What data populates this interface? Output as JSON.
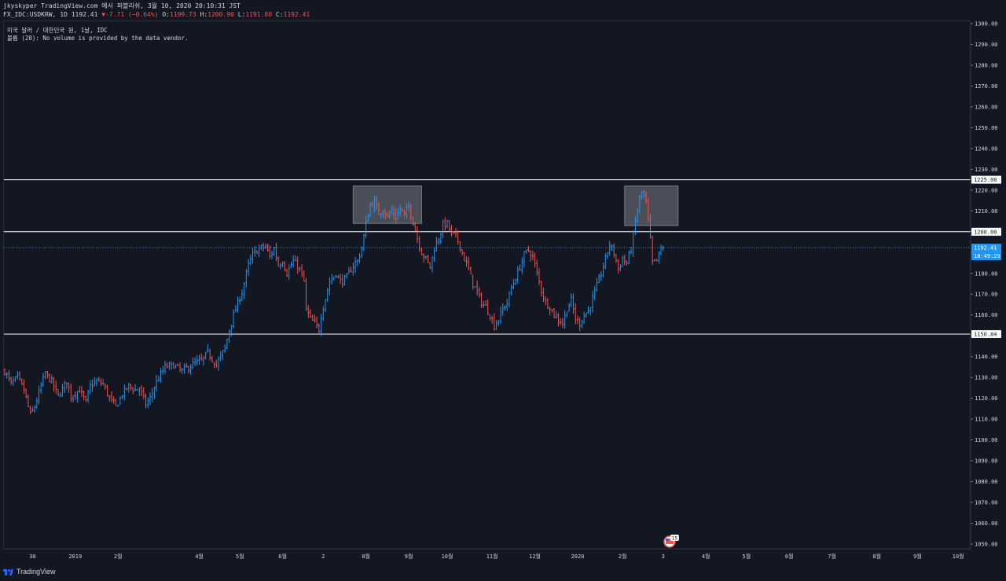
{
  "header": {
    "line1": "jkyskyper TradingView.com 에서 퍼블리쉬, 3월 10, 2020 20:10:31 JST",
    "symbol": "FX_IDC:USDKRW, 1D 1192.41",
    "change": "▼-7.71 (−0.64%)",
    "o_label": "O:",
    "o": "1199.73",
    "h_label": "H:",
    "h": "1200.90",
    "l_label": "L:",
    "l": "1191.80",
    "c_label": "C:",
    "c": "1192.41"
  },
  "legend": {
    "line1": "미국 달러 / 대한민국 원, 1날, IDC",
    "line2": "볼륨 (20): No volume is provided by the data vendor."
  },
  "footer": {
    "brand": "TradingView"
  },
  "colors": {
    "background": "#131722",
    "up": "#2196f3",
    "down": "#ef5350",
    "hline": "#ffffff",
    "price_line": "#2196f3",
    "box_fill": "#b2b5be",
    "box_stroke": "#787b86"
  },
  "chart_data": {
    "type": "ohlc",
    "symbol": "FX_IDC:USDKRW",
    "timeframe": "1D",
    "ylim": [
      1047,
      1302
    ],
    "y_ticks": [
      1050,
      1060,
      1070,
      1080,
      1090,
      1100,
      1110,
      1120,
      1130,
      1140,
      1150,
      1160,
      1170,
      1180,
      1190,
      1200,
      1210,
      1220,
      1230,
      1240,
      1250,
      1260,
      1270,
      1280,
      1290,
      1300
    ],
    "y_tick_labels": [
      "1050.00",
      "1060.00",
      "1070.00",
      "1080.00",
      "1090.00",
      "1100.00",
      "1110.00",
      "1120.00",
      "1130.00",
      "1140.00",
      "1150.00",
      "1160.00",
      "1170.00",
      "1180.00",
      "1190.00",
      "1200.00",
      "1210.00",
      "1220.00",
      "1230.00",
      "1240.00",
      "1250.00",
      "1260.00",
      "1270.00",
      "1280.00",
      "1290.00",
      "1300.00"
    ],
    "x_labels": [
      {
        "label": "30",
        "bar": 13
      },
      {
        "label": "2019",
        "bar": 33
      },
      {
        "label": "2월",
        "bar": 53
      },
      {
        "label": "4월",
        "bar": 91
      },
      {
        "label": "5월",
        "bar": 110
      },
      {
        "label": "6월",
        "bar": 130
      },
      {
        "label": "2",
        "bar": 149
      },
      {
        "label": "8월",
        "bar": 169
      },
      {
        "label": "9월",
        "bar": 189
      },
      {
        "label": "10월",
        "bar": 207
      },
      {
        "label": "11월",
        "bar": 228
      },
      {
        "label": "12월",
        "bar": 248
      },
      {
        "label": "2020",
        "bar": 268
      },
      {
        "label": "2월",
        "bar": 289
      },
      {
        "label": "3",
        "bar": 308
      },
      {
        "label": "4월",
        "bar": 328
      },
      {
        "label": "5월",
        "bar": 347
      },
      {
        "label": "6월",
        "bar": 367
      },
      {
        "label": "7월",
        "bar": 387
      },
      {
        "label": "8월",
        "bar": 408
      },
      {
        "label": "9월",
        "bar": 427
      },
      {
        "label": "10월",
        "bar": 446
      }
    ],
    "hlines": [
      {
        "value": 1225.0,
        "label": "1225.00"
      },
      {
        "value": 1200.0,
        "label": "1200.00"
      },
      {
        "value": 1150.84,
        "label": "1150.84"
      }
    ],
    "last_price": {
      "value": 1192.41,
      "label": "1192.41",
      "countdown": "10:49:29"
    },
    "boxes": [
      {
        "bar_start": 163,
        "bar_end": 195,
        "top": 1222,
        "bottom": 1204
      },
      {
        "bar_start": 290,
        "bar_end": 315,
        "top": 1222,
        "bottom": 1203
      }
    ],
    "event_marker": {
      "bar": 311,
      "badge": "15"
    },
    "keypoints": [
      [
        0,
        1133
      ],
      [
        3,
        1127
      ],
      [
        6,
        1130
      ],
      [
        9,
        1124
      ],
      [
        12,
        1112
      ],
      [
        14,
        1116
      ],
      [
        17,
        1126
      ],
      [
        19,
        1132
      ],
      [
        22,
        1128
      ],
      [
        25,
        1121
      ],
      [
        29,
        1128
      ],
      [
        31,
        1121
      ],
      [
        35,
        1124
      ],
      [
        38,
        1118
      ],
      [
        40,
        1126
      ],
      [
        43,
        1128
      ],
      [
        46,
        1127
      ],
      [
        49,
        1120
      ],
      [
        52,
        1116
      ],
      [
        55,
        1122
      ],
      [
        58,
        1126
      ],
      [
        61,
        1124
      ],
      [
        63,
        1125
      ],
      [
        66,
        1117
      ],
      [
        68,
        1120
      ],
      [
        71,
        1128
      ],
      [
        75,
        1135
      ],
      [
        79,
        1136
      ],
      [
        83,
        1133
      ],
      [
        86,
        1135
      ],
      [
        89,
        1137
      ],
      [
        92,
        1138
      ],
      [
        95,
        1142
      ],
      [
        99,
        1136
      ],
      [
        103,
        1144
      ],
      [
        105,
        1153
      ],
      [
        108,
        1163
      ],
      [
        111,
        1171
      ],
      [
        114,
        1184
      ],
      [
        116,
        1189
      ],
      [
        119,
        1192
      ],
      [
        122,
        1193
      ],
      [
        124,
        1188
      ],
      [
        126,
        1192
      ],
      [
        128,
        1184
      ],
      [
        130,
        1186
      ],
      [
        132,
        1180
      ],
      [
        135,
        1186
      ],
      [
        138,
        1182
      ],
      [
        140,
        1176
      ],
      [
        141,
        1163
      ],
      [
        143,
        1158
      ],
      [
        145,
        1156
      ],
      [
        147,
        1153
      ],
      [
        148,
        1160
      ],
      [
        150,
        1168
      ],
      [
        152,
        1176
      ],
      [
        155,
        1180
      ],
      [
        157,
        1176
      ],
      [
        160,
        1178
      ],
      [
        163,
        1184
      ],
      [
        165,
        1186
      ],
      [
        167,
        1192
      ],
      [
        169,
        1204
      ],
      [
        171,
        1213
      ],
      [
        173,
        1214
      ],
      [
        175,
        1209
      ],
      [
        177,
        1211
      ],
      [
        179,
        1207
      ],
      [
        181,
        1210
      ],
      [
        183,
        1207
      ],
      [
        185,
        1211
      ],
      [
        187,
        1208
      ],
      [
        189,
        1212
      ],
      [
        191,
        1205
      ],
      [
        193,
        1197
      ],
      [
        195,
        1190
      ],
      [
        197,
        1187
      ],
      [
        199,
        1183
      ],
      [
        201,
        1192
      ],
      [
        203,
        1197
      ],
      [
        205,
        1203
      ],
      [
        207,
        1204
      ],
      [
        209,
        1199
      ],
      [
        211,
        1198
      ],
      [
        213,
        1193
      ],
      [
        215,
        1187
      ],
      [
        217,
        1182
      ],
      [
        219,
        1175
      ],
      [
        221,
        1171
      ],
      [
        223,
        1166
      ],
      [
        225,
        1164
      ],
      [
        227,
        1160
      ],
      [
        229,
        1155
      ],
      [
        231,
        1158
      ],
      [
        233,
        1163
      ],
      [
        235,
        1166
      ],
      [
        237,
        1173
      ],
      [
        239,
        1178
      ],
      [
        241,
        1183
      ],
      [
        243,
        1189
      ],
      [
        245,
        1191
      ],
      [
        247,
        1188
      ],
      [
        249,
        1180
      ],
      [
        251,
        1172
      ],
      [
        253,
        1166
      ],
      [
        255,
        1164
      ],
      [
        257,
        1160
      ],
      [
        259,
        1158
      ],
      [
        261,
        1156
      ],
      [
        263,
        1163
      ],
      [
        265,
        1167
      ],
      [
        267,
        1158
      ],
      [
        269,
        1156
      ],
      [
        271,
        1160
      ],
      [
        273,
        1162
      ],
      [
        275,
        1168
      ],
      [
        277,
        1174
      ],
      [
        279,
        1180
      ],
      [
        281,
        1187
      ],
      [
        283,
        1194
      ],
      [
        285,
        1190
      ],
      [
        287,
        1182
      ],
      [
        289,
        1187
      ],
      [
        291,
        1185
      ],
      [
        293,
        1192
      ],
      [
        295,
        1205
      ],
      [
        297,
        1216
      ],
      [
        298,
        1219
      ],
      [
        300,
        1214
      ],
      [
        302,
        1196
      ],
      [
        303,
        1185
      ],
      [
        305,
        1186
      ],
      [
        307,
        1192
      ],
      [
        308,
        1192.41
      ]
    ]
  }
}
